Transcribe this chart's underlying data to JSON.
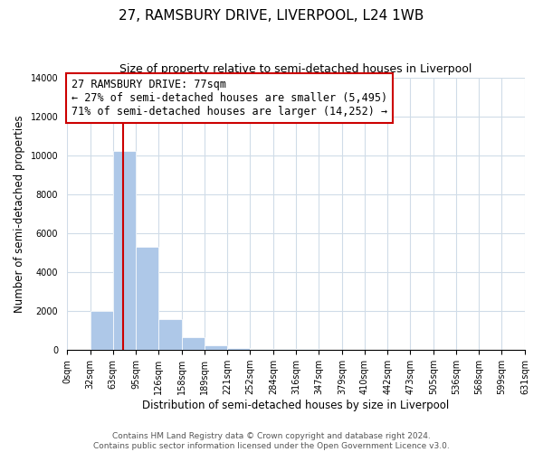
{
  "title": "27, RAMSBURY DRIVE, LIVERPOOL, L24 1WB",
  "subtitle": "Size of property relative to semi-detached houses in Liverpool",
  "xlabel": "Distribution of semi-detached houses by size in Liverpool",
  "ylabel": "Number of semi-detached properties",
  "bin_edges": [
    0,
    32,
    63,
    95,
    126,
    158,
    189,
    221,
    252,
    284,
    316,
    347,
    379,
    410,
    442,
    473,
    505,
    536,
    568,
    599,
    631
  ],
  "bin_labels": [
    "0sqm",
    "32sqm",
    "63sqm",
    "95sqm",
    "126sqm",
    "158sqm",
    "189sqm",
    "221sqm",
    "252sqm",
    "284sqm",
    "316sqm",
    "347sqm",
    "379sqm",
    "410sqm",
    "442sqm",
    "473sqm",
    "505sqm",
    "536sqm",
    "568sqm",
    "599sqm",
    "631sqm"
  ],
  "counts": [
    0,
    2000,
    10200,
    5300,
    1600,
    650,
    250,
    100,
    50,
    50,
    50,
    0,
    0,
    0,
    0,
    0,
    0,
    0,
    0,
    0
  ],
  "bar_color": "#aec8e8",
  "property_size": 77,
  "red_line_color": "#cc0000",
  "annotation_text_line1": "27 RAMSBURY DRIVE: 77sqm",
  "annotation_text_line2": "← 27% of semi-detached houses are smaller (5,495)",
  "annotation_text_line3": "71% of semi-detached houses are larger (14,252) →",
  "annotation_box_color": "#ffffff",
  "annotation_box_edge_color": "#cc0000",
  "ylim": [
    0,
    14000
  ],
  "yticks": [
    0,
    2000,
    4000,
    6000,
    8000,
    10000,
    12000,
    14000
  ],
  "footer_line1": "Contains HM Land Registry data © Crown copyright and database right 2024.",
  "footer_line2": "Contains public sector information licensed under the Open Government Licence v3.0.",
  "background_color": "#ffffff",
  "grid_color": "#d0dce8",
  "title_fontsize": 11,
  "subtitle_fontsize": 9,
  "axis_label_fontsize": 8.5,
  "tick_fontsize": 7,
  "annotation_fontsize": 8.5,
  "footer_fontsize": 6.5
}
